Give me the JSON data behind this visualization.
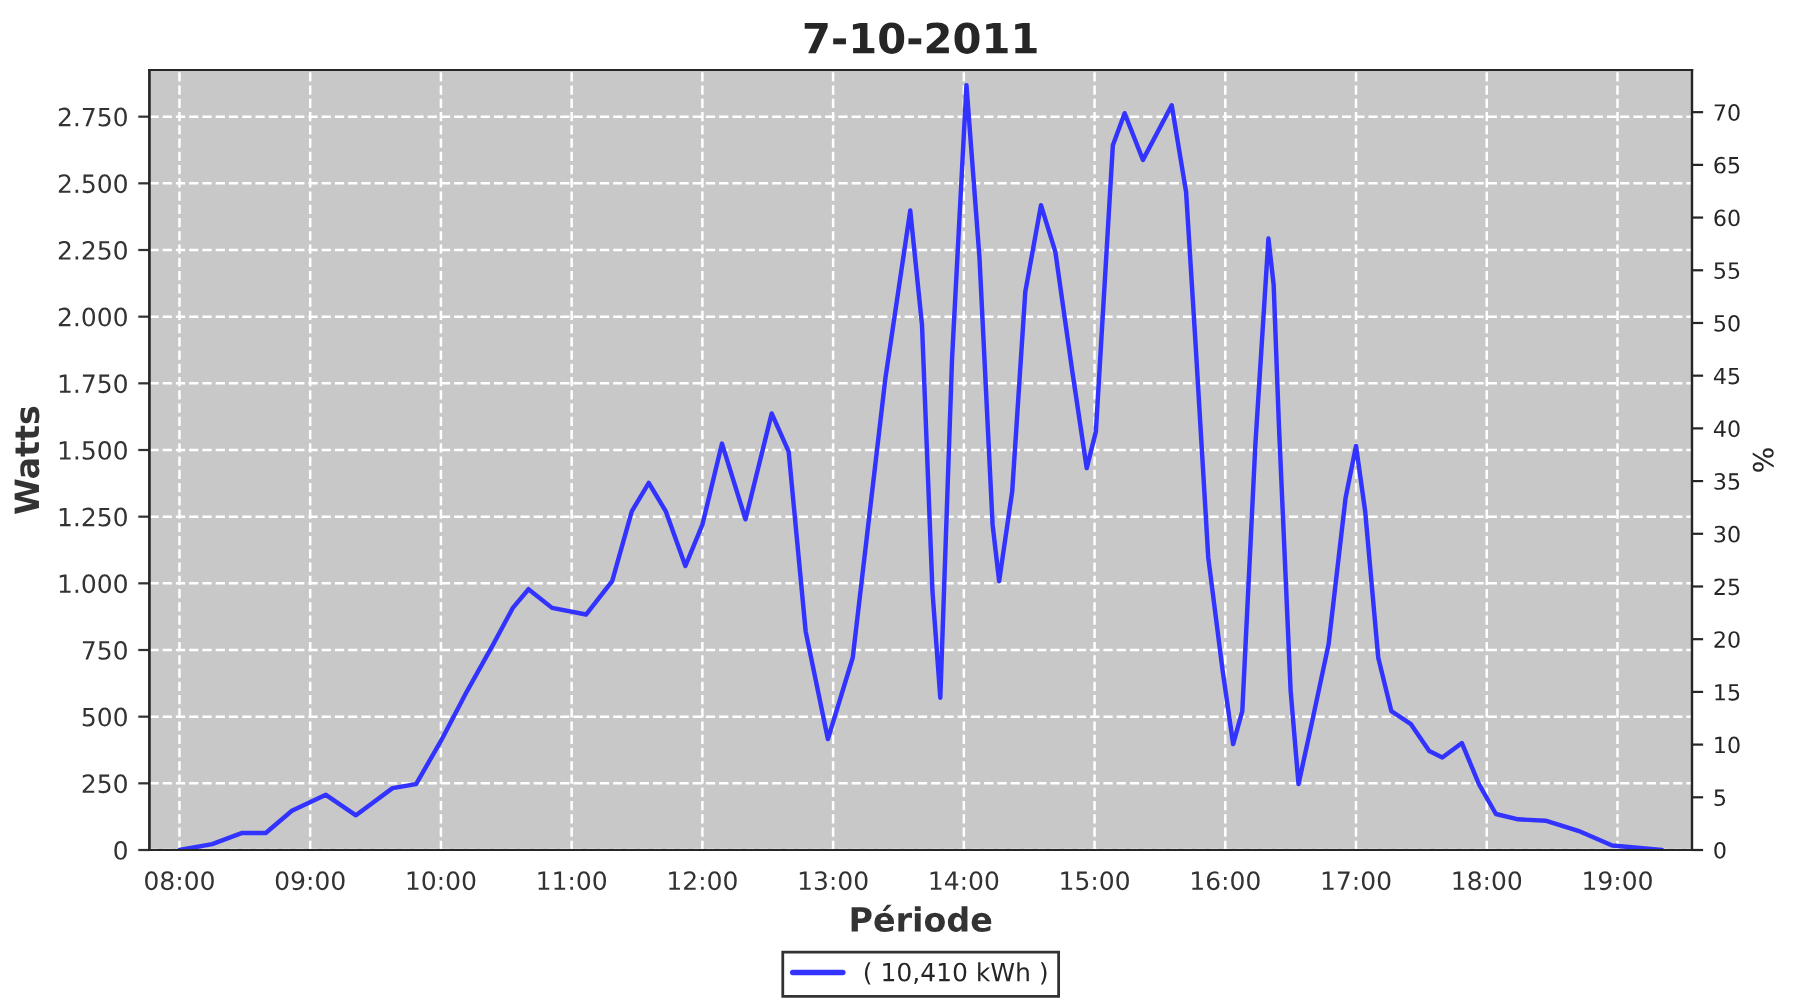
{
  "chart_data": {
    "type": "line",
    "title": "7-10-2011",
    "xlabel": "Période",
    "ylabel": "Watts",
    "y2label": "%",
    "x": [
      8.0,
      8.25,
      8.48,
      8.66,
      8.86,
      9.12,
      9.35,
      9.63,
      9.81,
      10.0,
      10.2,
      10.4,
      10.55,
      10.67,
      10.85,
      11.11,
      11.31,
      11.46,
      11.59,
      11.72,
      11.87,
      12.0,
      12.15,
      12.33,
      12.53,
      12.66,
      12.79,
      12.96,
      13.15,
      13.4,
      13.59,
      13.68,
      13.76,
      13.82,
      13.91,
      14.02,
      14.12,
      14.22,
      14.27,
      14.37,
      14.47,
      14.59,
      14.7,
      14.83,
      14.94,
      15.01,
      15.14,
      15.23,
      15.37,
      15.59,
      15.7,
      15.77,
      15.87,
      15.98,
      16.06,
      16.13,
      16.23,
      16.33,
      16.37,
      16.41,
      16.5,
      16.56,
      16.66,
      16.79,
      16.92,
      17.0,
      17.07,
      17.17,
      17.27,
      17.42,
      17.56,
      17.66,
      17.81,
      17.94,
      18.07,
      18.24,
      18.45,
      18.7,
      18.96,
      19.34
    ],
    "series": [
      {
        "name": "( 10,410 kWh )",
        "color": "#3333ff",
        "values": [
          0,
          22,
          64,
          64,
          147,
          207,
          130,
          232,
          247,
          409,
          596,
          771,
          908,
          978,
          908,
          883,
          1008,
          1270,
          1377,
          1270,
          1065,
          1220,
          1524,
          1240,
          1637,
          1494,
          820,
          416,
          721,
          1769,
          2398,
          1969,
          970,
          571,
          1844,
          2868,
          2218,
          1220,
          1008,
          1345,
          2093,
          2418,
          2243,
          1794,
          1432,
          1569,
          2643,
          2763,
          2588,
          2793,
          2468,
          1919,
          1095,
          671,
          397,
          521,
          1520,
          2293,
          2119,
          1595,
          596,
          247,
          472,
          771,
          1320,
          1515,
          1270,
          721,
          521,
          472,
          371,
          347,
          401,
          247,
          135,
          115,
          110,
          72,
          17,
          0
        ]
      }
    ],
    "xlim": [
      7.77,
      19.57
    ],
    "xticks": [
      {
        "value": 8,
        "label": "08:00"
      },
      {
        "value": 9,
        "label": "09:00"
      },
      {
        "value": 10,
        "label": "10:00"
      },
      {
        "value": 11,
        "label": "11:00"
      },
      {
        "value": 12,
        "label": "12:00"
      },
      {
        "value": 13,
        "label": "13:00"
      },
      {
        "value": 14,
        "label": "14:00"
      },
      {
        "value": 15,
        "label": "15:00"
      },
      {
        "value": 16,
        "label": "16:00"
      },
      {
        "value": 17,
        "label": "17:00"
      },
      {
        "value": 18,
        "label": "18:00"
      },
      {
        "value": 19,
        "label": "19:00"
      }
    ],
    "ylim": [
      0,
      2925
    ],
    "yticks": [
      0,
      250,
      500,
      750,
      {
        "value": 1000,
        "label": "1.000"
      },
      {
        "value": 1250,
        "label": "1.250"
      },
      {
        "value": 1500,
        "label": "1.500"
      },
      {
        "value": 1750,
        "label": "1.750"
      },
      {
        "value": 2000,
        "label": "2.000"
      },
      {
        "value": 2250,
        "label": "2.250"
      },
      {
        "value": 2500,
        "label": "2.500"
      },
      {
        "value": 2750,
        "label": "2.750"
      }
    ],
    "y2lim": [
      0,
      74
    ],
    "y2ticks": [
      0,
      5,
      10,
      15,
      20,
      25,
      30,
      35,
      40,
      45,
      50,
      55,
      60,
      65,
      70
    ],
    "grid": true,
    "legend": "bottom"
  }
}
